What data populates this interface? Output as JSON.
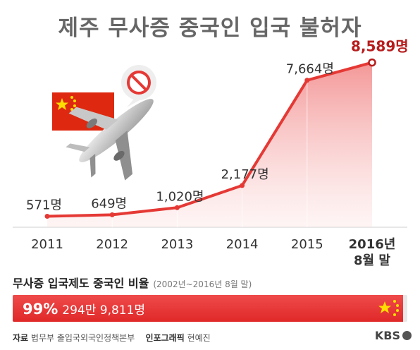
{
  "chart_data": {
    "type": "area",
    "title": "제주 무사증 중국인 입국 불허자",
    "categories": [
      "2011",
      "2012",
      "2013",
      "2014",
      "2015",
      "2016년"
    ],
    "category_sublabels": [
      "",
      "",
      "",
      "",
      "",
      "8월 말"
    ],
    "values": [
      571,
      649,
      1020,
      2177,
      7664,
      8589
    ],
    "data_labels": [
      "571명",
      "649명",
      "1,020명",
      "2,177명",
      "7,664명",
      "8,589명"
    ],
    "ylim": [
      0,
      9200
    ],
    "colors": {
      "line": "#e53935",
      "highlight": "#b71c1c",
      "fill": "#f28b8b"
    }
  },
  "illustration": {
    "flag_icon": "china-flag-icon",
    "plane_icon": "airplane-icon",
    "ban_icon": "no-entry-icon"
  },
  "ratio": {
    "title": "무사증 입국제도 중국인 비율",
    "note": "(2002년~2016년 8월 말)",
    "percent_label": "99%",
    "percent_value": 0.99,
    "count_label": "294만 9,811명",
    "colors": {
      "fill": "#e53935",
      "track": "#e8e8e8",
      "stars": "#ffde00"
    }
  },
  "footer": {
    "source_label": "자료",
    "source": "법무부 출입국외국인정책본부",
    "graphic_label": "인포그래픽",
    "graphic_author": "현예진",
    "logo": "KBS"
  }
}
